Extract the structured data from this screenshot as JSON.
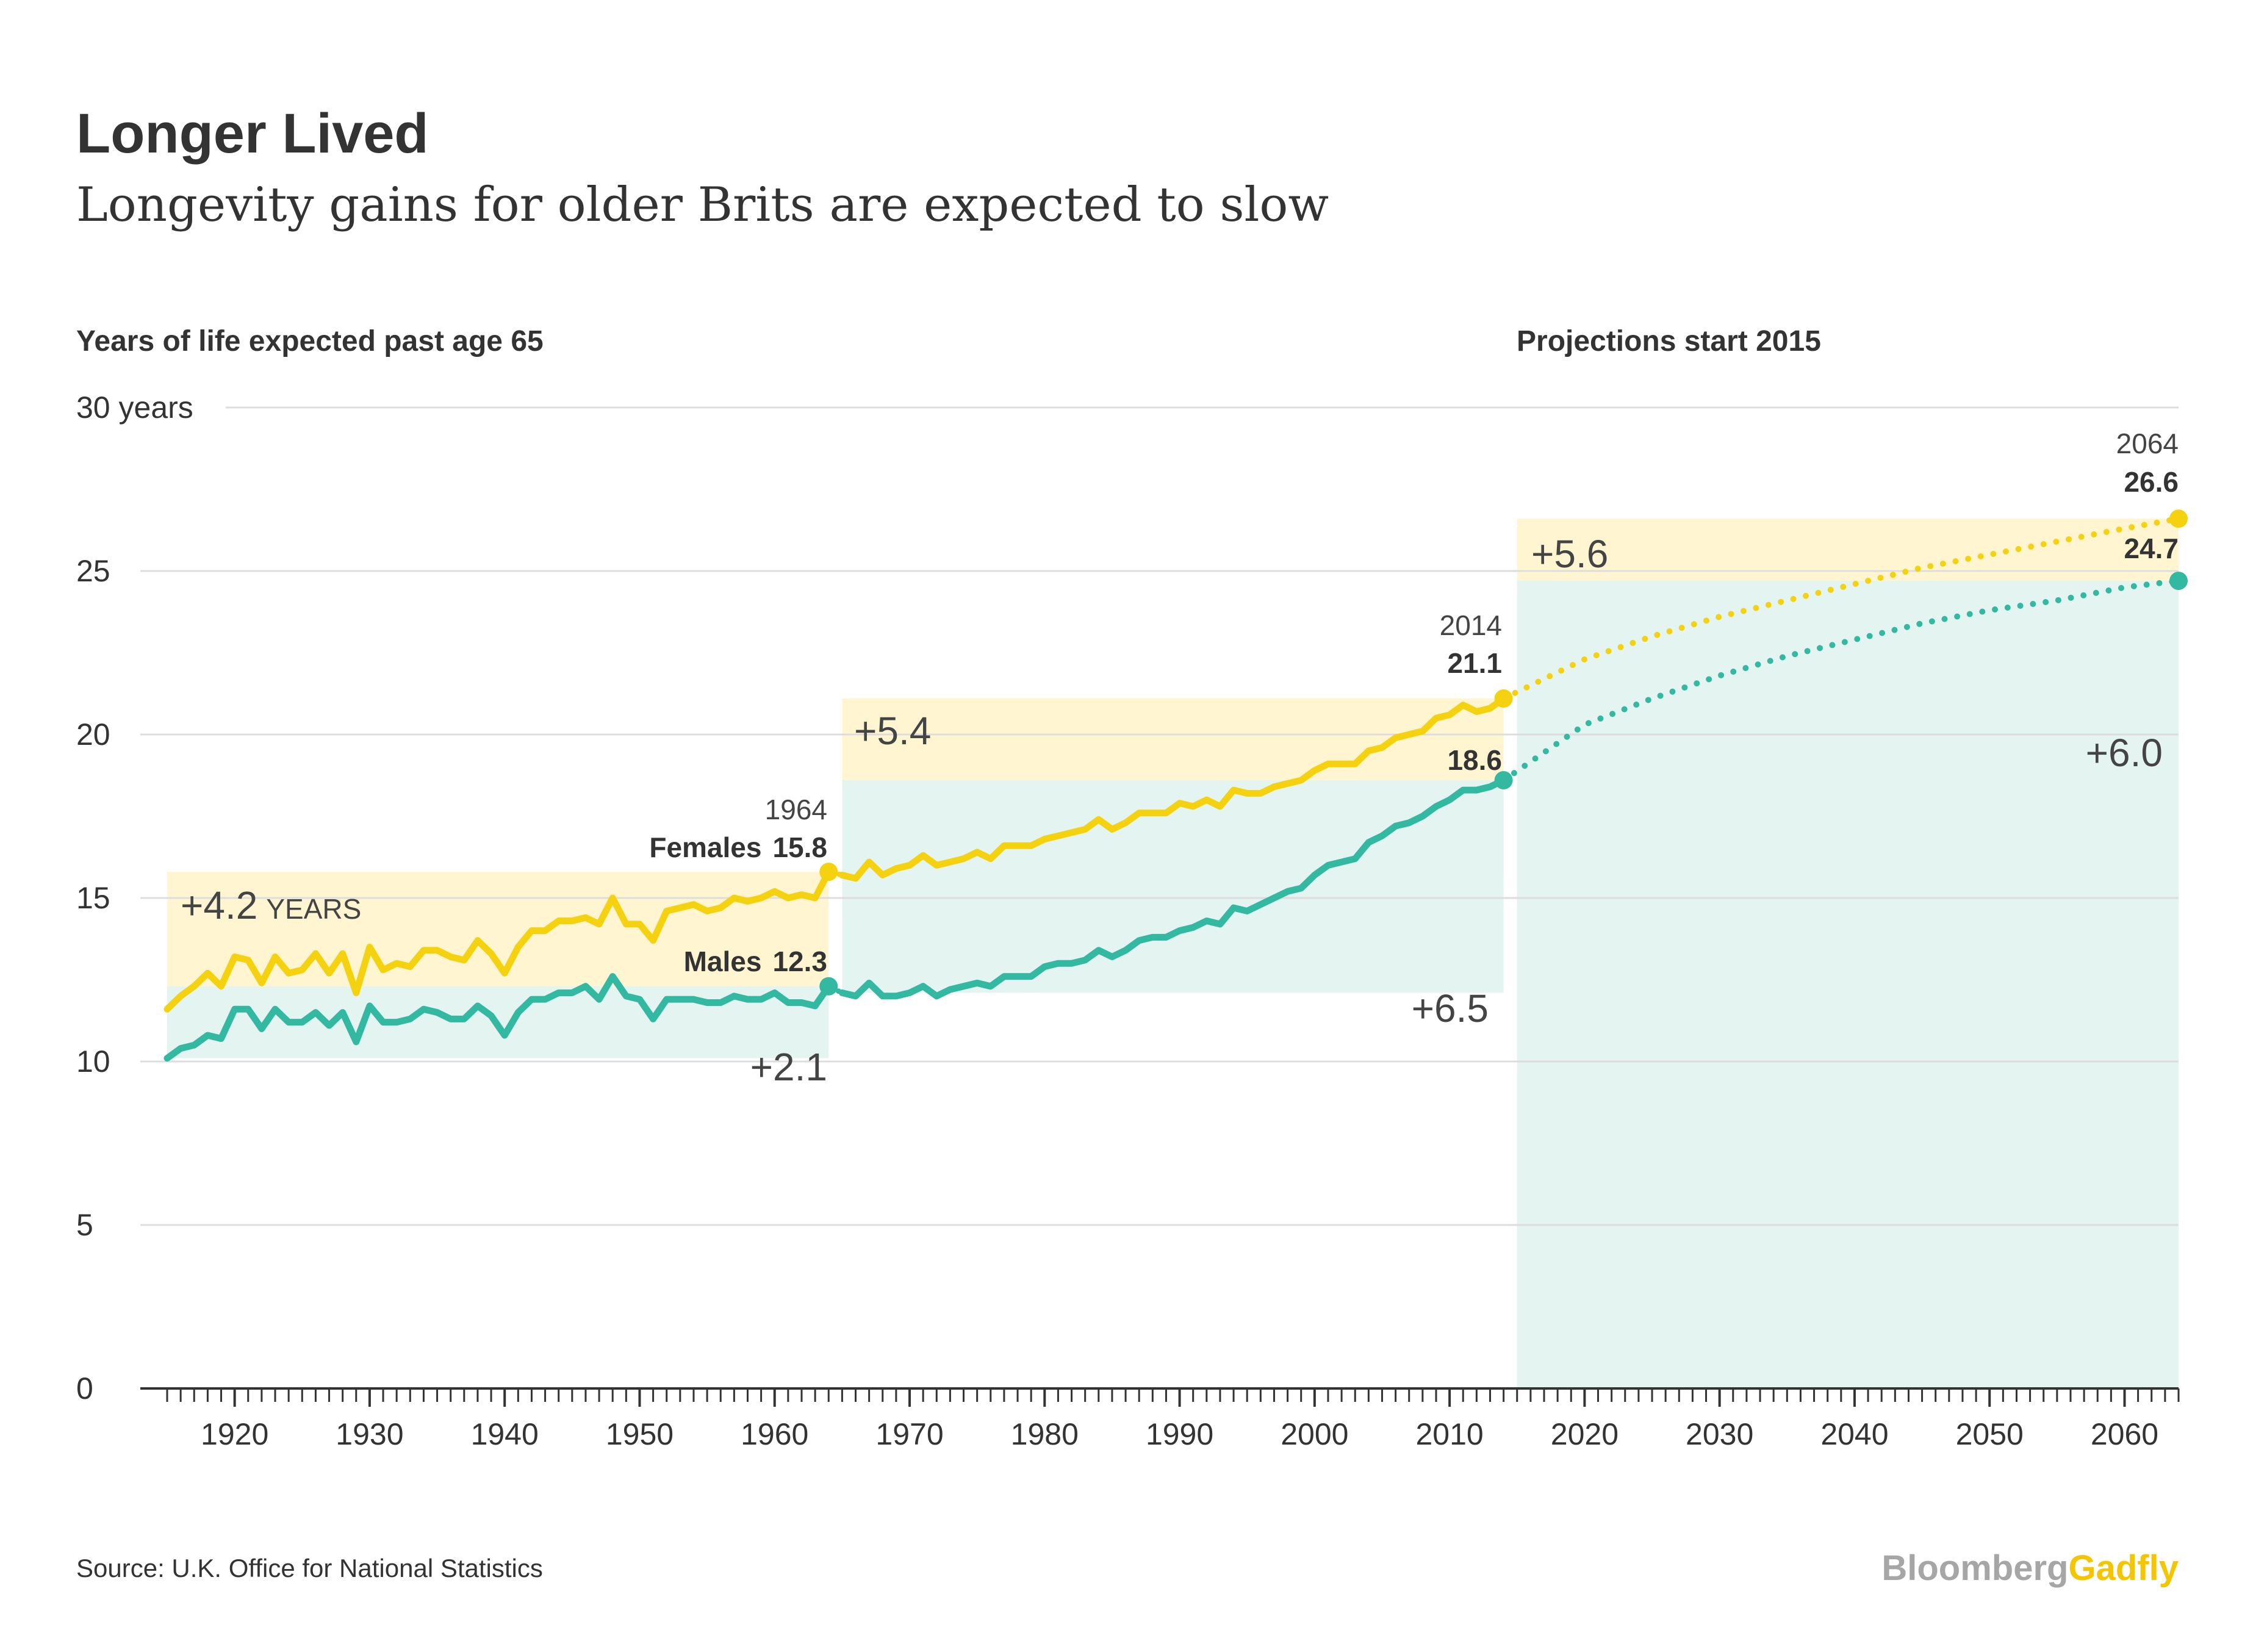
{
  "header": {
    "title": "Longer Lived",
    "subtitle": "Longevity gains for older Brits are expected to slow"
  },
  "labels": {
    "yaxis_title": "Years of life expected past age 65",
    "projection_note": "Projections start 2015",
    "top_tick_suffix": "30 years"
  },
  "footer": {
    "source": "Source: U.K. Office for National Statistics",
    "brand_a": "Bloomberg",
    "brand_b": "Gadfly"
  },
  "colors": {
    "female": "#F5D20F",
    "male": "#33B8A2",
    "female_band": "#FFF6D1",
    "male_band": "#E4F4F1",
    "grid": "#DDDDDD",
    "axis": "#333333",
    "brand_a": "#A6A6A6",
    "brand_b": "#F5C500"
  },
  "annotations": {
    "f1": "+4.2",
    "f1_unit": "YEARS",
    "m1": "+2.1",
    "f2": "+5.4",
    "m2": "+6.5",
    "f3": "+5.6",
    "m3": "+6.0",
    "y1964": "1964",
    "females_label": "Females",
    "females_1964": "15.8",
    "males_label": "Males",
    "males_1964": "12.3",
    "y2014": "2014",
    "females_2014": "21.1",
    "males_2014": "18.6",
    "y2064": "2064",
    "females_2064": "26.6",
    "males_2064": "24.7"
  },
  "chart_data": {
    "type": "line",
    "title": "Longer Lived",
    "subtitle": "Longevity gains for older Brits are expected to slow",
    "ylabel": "Years of life expected past age 65",
    "ylim": [
      0,
      30
    ],
    "xlim": [
      1915,
      2064
    ],
    "yticks": [
      0,
      5,
      10,
      15,
      20,
      25,
      30
    ],
    "xticks": [
      1920,
      1930,
      1940,
      1950,
      1960,
      1970,
      1980,
      1990,
      2000,
      2010,
      2020,
      2030,
      2040,
      2050,
      2060
    ],
    "grid": true,
    "projection_start": 2015,
    "series": [
      {
        "name": "Females",
        "color": "#F5D20F",
        "historical": {
          "x": [
            1915,
            1916,
            1917,
            1918,
            1919,
            1920,
            1921,
            1922,
            1923,
            1924,
            1925,
            1926,
            1927,
            1928,
            1929,
            1930,
            1931,
            1932,
            1933,
            1934,
            1935,
            1936,
            1937,
            1938,
            1939,
            1940,
            1941,
            1942,
            1943,
            1944,
            1945,
            1946,
            1947,
            1948,
            1949,
            1950,
            1951,
            1952,
            1953,
            1954,
            1955,
            1956,
            1957,
            1958,
            1959,
            1960,
            1961,
            1962,
            1963,
            1964,
            1965,
            1966,
            1967,
            1968,
            1969,
            1970,
            1971,
            1972,
            1973,
            1974,
            1975,
            1976,
            1977,
            1978,
            1979,
            1980,
            1981,
            1982,
            1983,
            1984,
            1985,
            1986,
            1987,
            1988,
            1989,
            1990,
            1991,
            1992,
            1993,
            1994,
            1995,
            1996,
            1997,
            1998,
            1999,
            2000,
            2001,
            2002,
            2003,
            2004,
            2005,
            2006,
            2007,
            2008,
            2009,
            2010,
            2011,
            2012,
            2013,
            2014
          ],
          "y": [
            11.6,
            12.0,
            12.3,
            12.7,
            12.3,
            13.2,
            13.1,
            12.4,
            13.2,
            12.7,
            12.8,
            13.3,
            12.7,
            13.3,
            12.1,
            13.5,
            12.8,
            13.0,
            12.9,
            13.4,
            13.4,
            13.2,
            13.1,
            13.7,
            13.3,
            12.7,
            13.5,
            14.0,
            14.0,
            14.3,
            14.3,
            14.4,
            14.2,
            15.0,
            14.2,
            14.2,
            13.7,
            14.6,
            14.7,
            14.8,
            14.6,
            14.7,
            15.0,
            14.9,
            15.0,
            15.2,
            15.0,
            15.1,
            15.0,
            15.8,
            15.7,
            15.6,
            16.1,
            15.7,
            15.9,
            16.0,
            16.3,
            16.0,
            16.1,
            16.2,
            16.4,
            16.2,
            16.6,
            16.6,
            16.6,
            16.8,
            16.9,
            17.0,
            17.1,
            17.4,
            17.1,
            17.3,
            17.6,
            17.6,
            17.6,
            17.9,
            17.8,
            18.0,
            17.8,
            18.3,
            18.2,
            18.2,
            18.4,
            18.5,
            18.6,
            18.9,
            19.1,
            19.1,
            19.1,
            19.5,
            19.6,
            19.9,
            20.0,
            20.1,
            20.5,
            20.6,
            20.9,
            20.7,
            20.8,
            21.1
          ]
        },
        "projected": {
          "x": [
            2014,
            2020,
            2025,
            2030,
            2035,
            2040,
            2045,
            2050,
            2055,
            2060,
            2064
          ],
          "y": [
            21.1,
            22.3,
            23.0,
            23.6,
            24.1,
            24.6,
            25.1,
            25.5,
            25.9,
            26.3,
            26.6
          ]
        }
      },
      {
        "name": "Males",
        "color": "#33B8A2",
        "historical": {
          "x": [
            1915,
            1916,
            1917,
            1918,
            1919,
            1920,
            1921,
            1922,
            1923,
            1924,
            1925,
            1926,
            1927,
            1928,
            1929,
            1930,
            1931,
            1932,
            1933,
            1934,
            1935,
            1936,
            1937,
            1938,
            1939,
            1940,
            1941,
            1942,
            1943,
            1944,
            1945,
            1946,
            1947,
            1948,
            1949,
            1950,
            1951,
            1952,
            1953,
            1954,
            1955,
            1956,
            1957,
            1958,
            1959,
            1960,
            1961,
            1962,
            1963,
            1964,
            1965,
            1966,
            1967,
            1968,
            1969,
            1970,
            1971,
            1972,
            1973,
            1974,
            1975,
            1976,
            1977,
            1978,
            1979,
            1980,
            1981,
            1982,
            1983,
            1984,
            1985,
            1986,
            1987,
            1988,
            1989,
            1990,
            1991,
            1992,
            1993,
            1994,
            1995,
            1996,
            1997,
            1998,
            1999,
            2000,
            2001,
            2002,
            2003,
            2004,
            2005,
            2006,
            2007,
            2008,
            2009,
            2010,
            2011,
            2012,
            2013,
            2014
          ],
          "y": [
            10.1,
            10.4,
            10.5,
            10.8,
            10.7,
            11.6,
            11.6,
            11.0,
            11.6,
            11.2,
            11.2,
            11.5,
            11.1,
            11.5,
            10.6,
            11.7,
            11.2,
            11.2,
            11.3,
            11.6,
            11.5,
            11.3,
            11.3,
            11.7,
            11.4,
            10.8,
            11.5,
            11.9,
            11.9,
            12.1,
            12.1,
            12.3,
            11.9,
            12.6,
            12.0,
            11.9,
            11.3,
            11.9,
            11.9,
            11.9,
            11.8,
            11.8,
            12.0,
            11.9,
            11.9,
            12.1,
            11.8,
            11.8,
            11.7,
            12.3,
            12.1,
            12.0,
            12.4,
            12.0,
            12.0,
            12.1,
            12.3,
            12.0,
            12.2,
            12.3,
            12.4,
            12.3,
            12.6,
            12.6,
            12.6,
            12.9,
            13.0,
            13.0,
            13.1,
            13.4,
            13.2,
            13.4,
            13.7,
            13.8,
            13.8,
            14.0,
            14.1,
            14.3,
            14.2,
            14.7,
            14.6,
            14.8,
            15.0,
            15.2,
            15.3,
            15.7,
            16.0,
            16.1,
            16.2,
            16.7,
            16.9,
            17.2,
            17.3,
            17.5,
            17.8,
            18.0,
            18.3,
            18.3,
            18.4,
            18.6
          ]
        },
        "projected": {
          "x": [
            2014,
            2020,
            2025,
            2030,
            2035,
            2040,
            2045,
            2050,
            2055,
            2060,
            2064
          ],
          "y": [
            18.6,
            20.3,
            21.1,
            21.8,
            22.4,
            22.9,
            23.4,
            23.8,
            24.1,
            24.5,
            24.7
          ]
        }
      }
    ],
    "periods": [
      {
        "start": 1915,
        "end": 1964,
        "female_gain": "+4.2",
        "male_gain": "+2.1"
      },
      {
        "start": 1965,
        "end": 2014,
        "female_gain": "+5.4",
        "male_gain": "+6.5"
      },
      {
        "start": 2015,
        "end": 2064,
        "female_gain": "+5.6",
        "male_gain": "+6.0"
      }
    ]
  }
}
